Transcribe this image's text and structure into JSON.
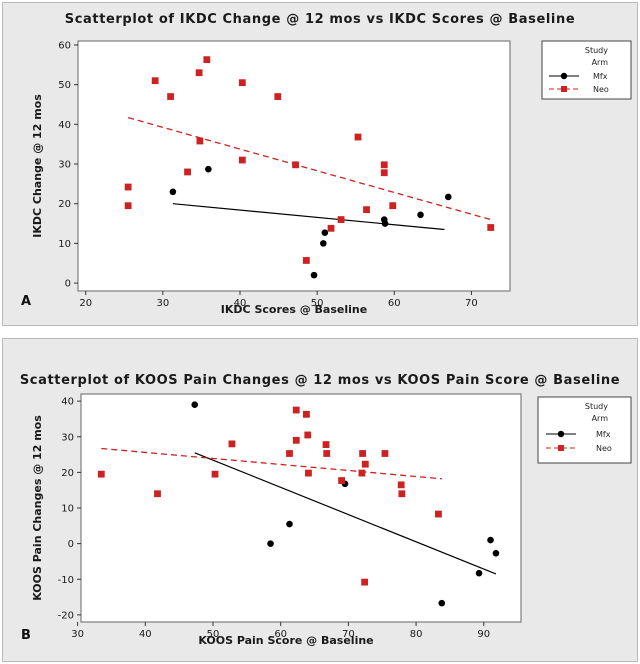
{
  "chart_data": [
    {
      "type": "scatter",
      "panel_letter": "A",
      "title": "Scatterplot of IKDC Change @ 12 mos vs IKDC Scores @ Baseline",
      "xlabel": "IKDC Scores @ Baseline",
      "ylabel": "IKDC Change @ 12 mos",
      "xlim": [
        19,
        75
      ],
      "ylim": [
        -2,
        61
      ],
      "xticks": [
        20,
        30,
        40,
        50,
        60,
        70
      ],
      "yticks": [
        0,
        10,
        20,
        30,
        40,
        50,
        60
      ],
      "legend": {
        "title_line1": "Study",
        "title_line2": "Arm",
        "position": "right"
      },
      "series": [
        {
          "name": "Mfx",
          "color": "#000000",
          "marker": "circle",
          "points": [
            [
              31.3,
              23
            ],
            [
              35.9,
              28.7
            ],
            [
              49.6,
              2
            ],
            [
              50.8,
              10
            ],
            [
              51,
              12.7
            ],
            [
              58.7,
              16
            ],
            [
              58.8,
              15
            ],
            [
              63.4,
              17.2
            ],
            [
              67,
              21.7
            ]
          ],
          "fit": [
            [
              31.3,
              20
            ],
            [
              66.5,
              13.5
            ]
          ]
        },
        {
          "name": "Neo",
          "color": "#cc2222",
          "marker": "square",
          "points": [
            [
              25.5,
              24.2
            ],
            [
              25.5,
              19.5
            ],
            [
              29,
              51
            ],
            [
              31,
              47
            ],
            [
              33.2,
              28
            ],
            [
              34.7,
              53
            ],
            [
              34.8,
              35.8
            ],
            [
              35.7,
              56.3
            ],
            [
              40.3,
              50.5
            ],
            [
              40.3,
              31
            ],
            [
              44.9,
              47
            ],
            [
              47.2,
              29.8
            ],
            [
              48.6,
              5.7
            ],
            [
              51.8,
              13.8
            ],
            [
              53.1,
              16
            ],
            [
              55.3,
              36.8
            ],
            [
              56.4,
              18.5
            ],
            [
              58.7,
              29.8
            ],
            [
              58.7,
              27.8
            ],
            [
              59.8,
              19.5
            ],
            [
              72.5,
              14
            ]
          ],
          "fit": [
            [
              25.5,
              41.7
            ],
            [
              72.5,
              16
            ]
          ]
        }
      ]
    },
    {
      "type": "scatter",
      "panel_letter": "B",
      "title": "Scatterplot of KOOS Pain Changes @ 12 mos vs KOOS Pain Score @ Baseline",
      "xlabel": "KOOS Pain Score @ Baseline",
      "ylabel": "KOOS Pain Changes @ 12 mos",
      "xlim": [
        30.5,
        95.5
      ],
      "ylim": [
        -22,
        42
      ],
      "xticks": [
        30,
        40,
        50,
        60,
        70,
        80,
        90
      ],
      "yticks": [
        -20,
        -10,
        0,
        10,
        20,
        30,
        40
      ],
      "legend": {
        "title_line1": "Study",
        "title_line2": "Arm",
        "position": "right"
      },
      "series": [
        {
          "name": "Mfx",
          "color": "#000000",
          "marker": "circle",
          "points": [
            [
              47.3,
              39
            ],
            [
              58.5,
              0
            ],
            [
              61.3,
              5.5
            ],
            [
              69.5,
              16.8
            ],
            [
              83.8,
              -16.7
            ],
            [
              89.3,
              -8.3
            ],
            [
              91,
              1
            ],
            [
              91.8,
              -2.7
            ]
          ],
          "fit": [
            [
              47.3,
              25.5
            ],
            [
              91.8,
              -8.5
            ]
          ]
        },
        {
          "name": "Neo",
          "color": "#cc2222",
          "marker": "square",
          "points": [
            [
              33.5,
              19.5
            ],
            [
              41.8,
              14
            ],
            [
              50.3,
              19.5
            ],
            [
              52.8,
              28
            ],
            [
              61.3,
              25.3
            ],
            [
              62.3,
              37.5
            ],
            [
              62.3,
              29
            ],
            [
              63.8,
              36.3
            ],
            [
              64,
              30.5
            ],
            [
              64.1,
              19.8
            ],
            [
              66.7,
              27.8
            ],
            [
              66.8,
              25.3
            ],
            [
              69,
              17.7
            ],
            [
              72,
              19.8
            ],
            [
              72.1,
              25.3
            ],
            [
              72.4,
              -10.8
            ],
            [
              72.5,
              22.3
            ],
            [
              75.4,
              25.3
            ],
            [
              77.8,
              16.5
            ],
            [
              77.9,
              14
            ],
            [
              83.3,
              8.3
            ]
          ],
          "fit": [
            [
              33.5,
              26.7
            ],
            [
              83.8,
              18.2
            ]
          ]
        }
      ]
    }
  ]
}
